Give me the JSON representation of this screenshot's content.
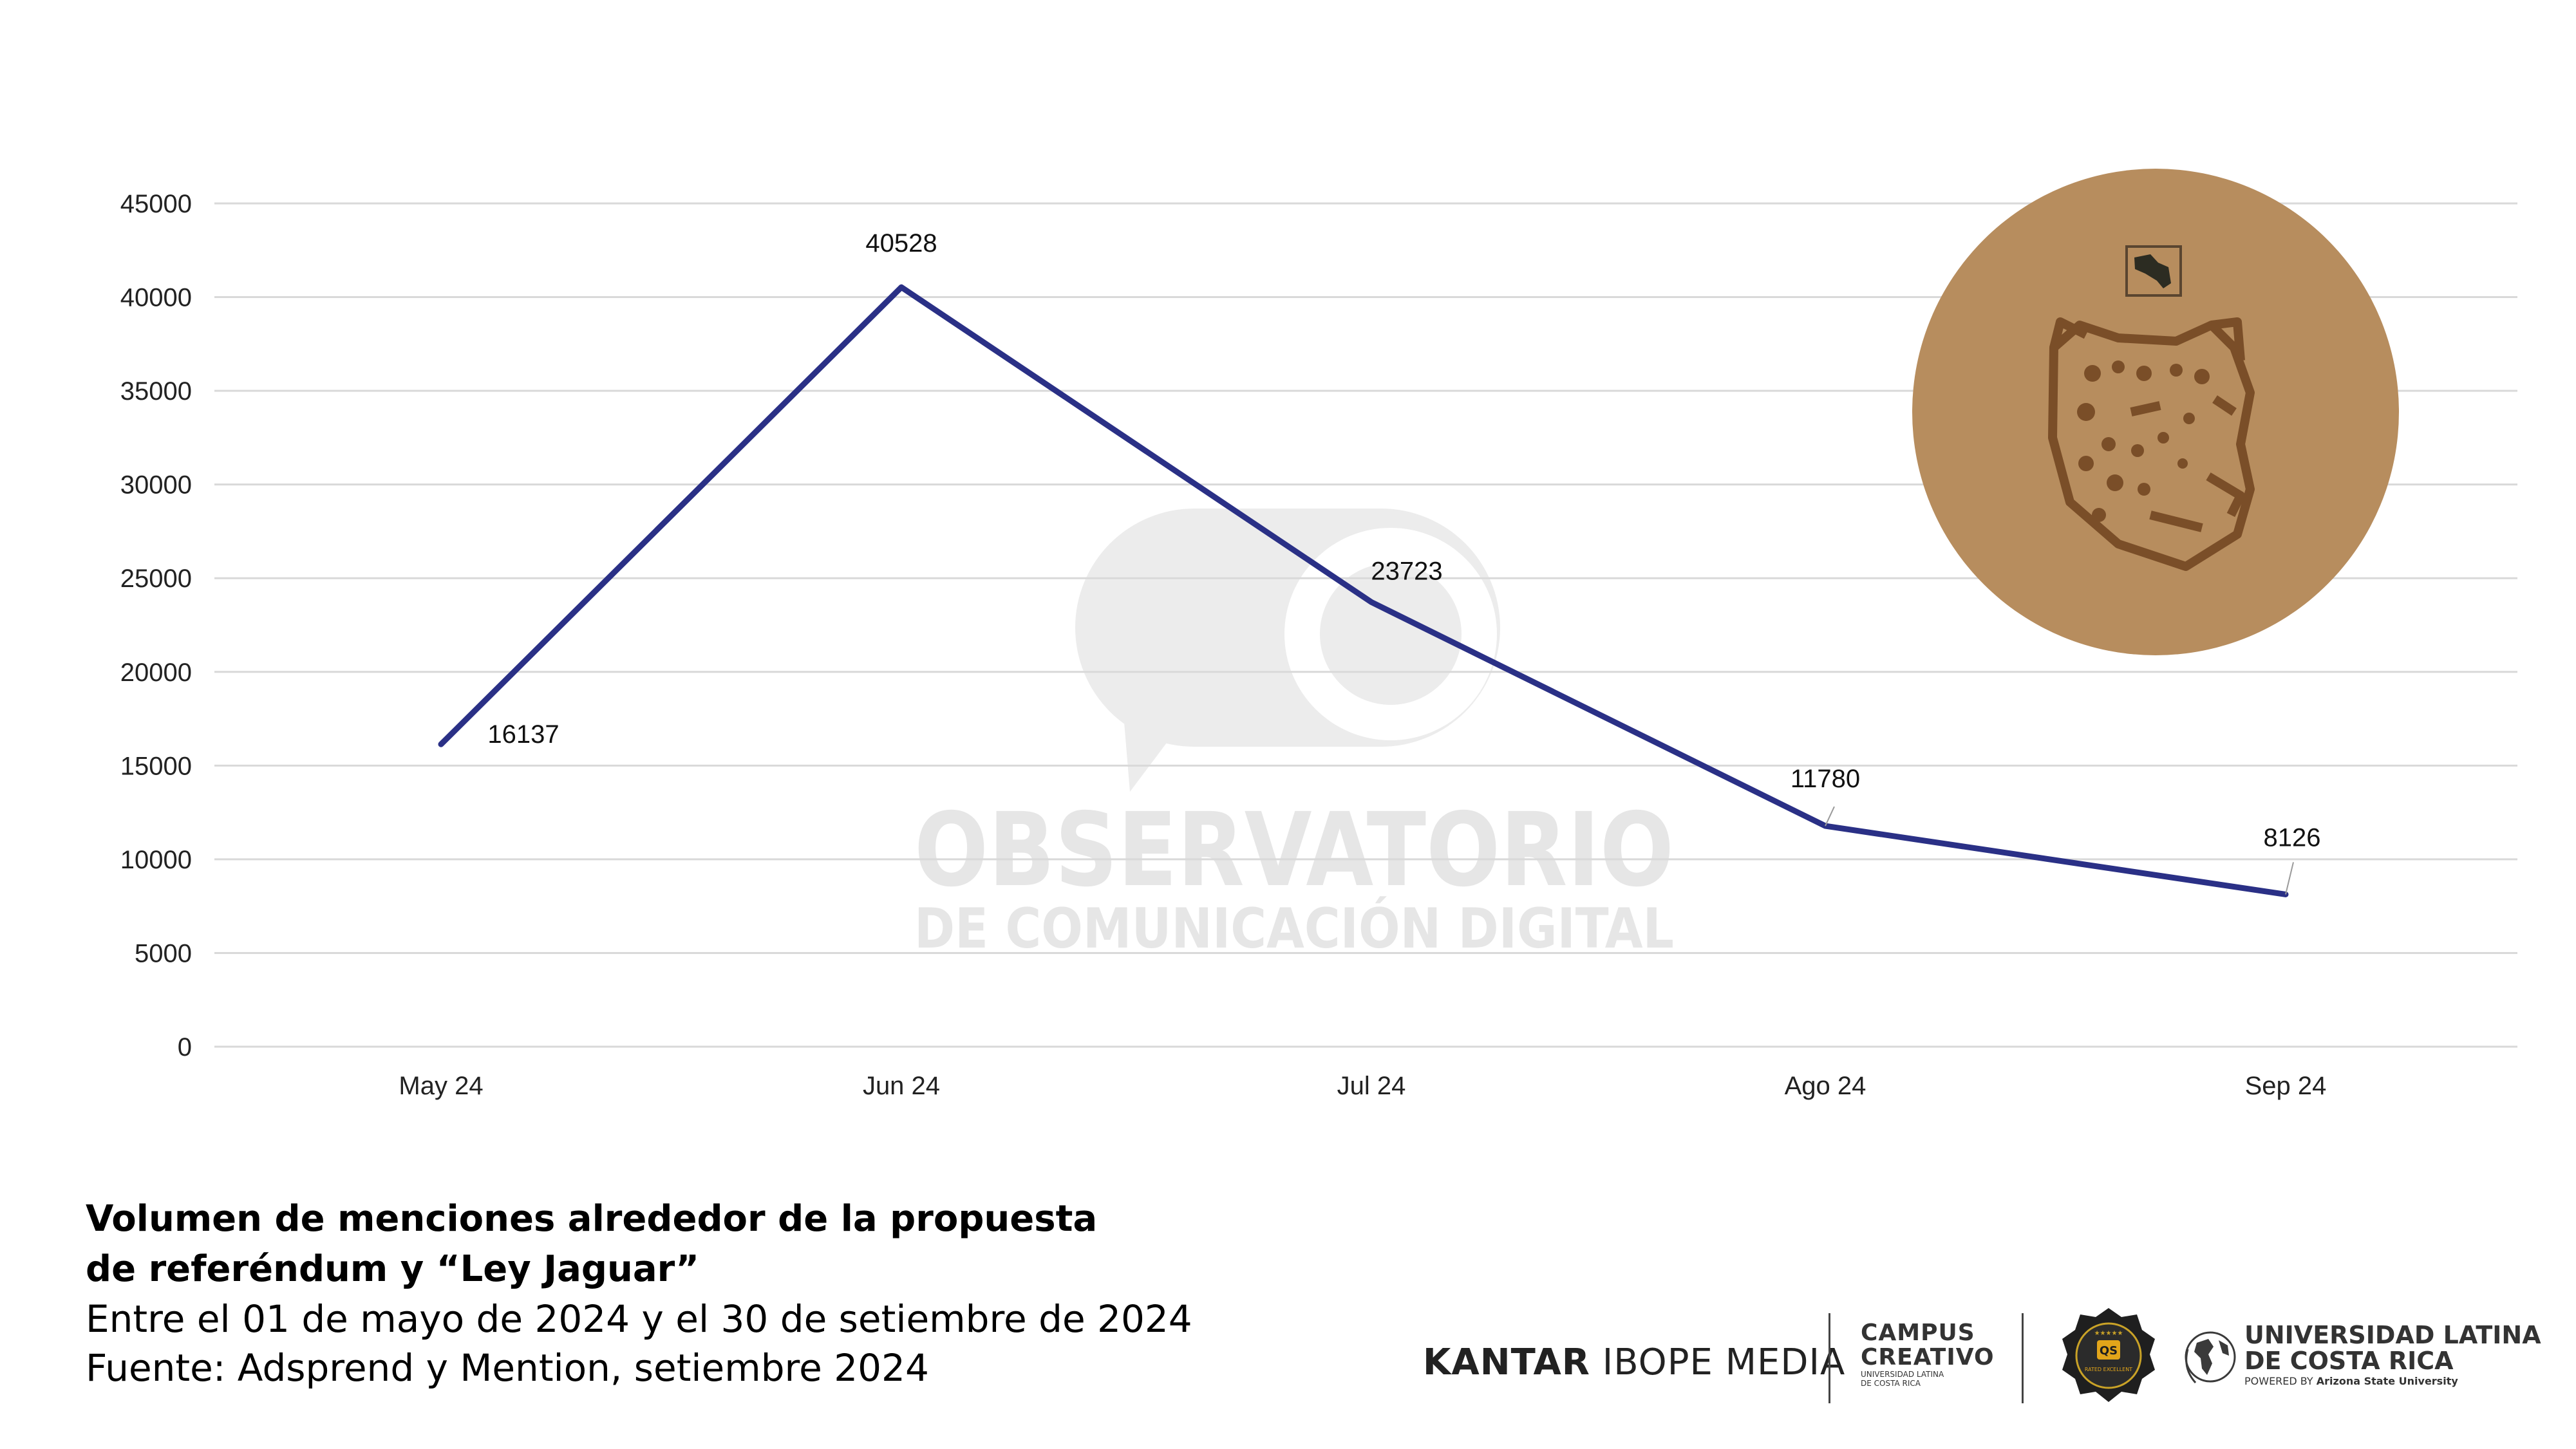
{
  "chart_data": {
    "type": "line",
    "title": "Volumen de menciones alrededor de la propuesta de referéndum y “Ley Jaguar”",
    "categories": [
      "May 24",
      "Jun 24",
      "Jul 24",
      "Ago 24",
      "Sep 24"
    ],
    "series": [
      {
        "name": "Menciones",
        "values": [
          16137,
          40528,
          23723,
          11780,
          8126
        ]
      }
    ],
    "y_ticks": [
      0,
      5000,
      10000,
      15000,
      20000,
      25000,
      30000,
      35000,
      40000,
      45000
    ],
    "ylim": [
      0,
      45000
    ],
    "grid": true,
    "xlabel": "",
    "ylabel": "",
    "line_color": "#2a3086",
    "grid_color": "#d9d9d9"
  },
  "watermark": {
    "line1": "OBSERVATORIO",
    "line2": "DE COMUNICACIÓN DIGITAL"
  },
  "caption": {
    "title_line1": "Volumen de menciones alrededor de la propuesta",
    "title_line2": "de referéndum y “Ley Jaguar”",
    "period": "Entre el 01 de mayo de 2024 y el 30 de setiembre de 2024",
    "source": "Fuente: Adsprend y Mention, setiembre 2024"
  },
  "logos": {
    "kantar_bold": "KANTAR",
    "kantar_rest": "IBOPE MEDIA",
    "campus_line1": "CAMPUS",
    "campus_line2": "CREATIVO",
    "campus_sub1": "UNIVERSIDAD LATINA",
    "campus_sub2": "DE COSTA RICA",
    "badge_code": "QS",
    "badge_text": "RATED EXCELLENT",
    "ulatina_line1": "UNIVERSIDAD LATINA",
    "ulatina_line2": "DE COSTA RICA",
    "ulatina_powered_prefix": "POWERED BY",
    "ulatina_powered_name": "Arizona State University",
    "emblem_color": "#b78d5e"
  }
}
